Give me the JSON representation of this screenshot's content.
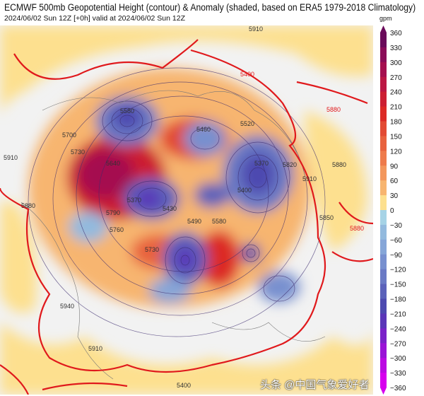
{
  "header": {
    "title": "ECMWF 500mb Geopotential Height (contour) & Anomaly (shaded, based on ERA5 1979-2018 Climatology)",
    "subtitle": "2024/06/02 Sun 12Z [+0h] valid at 2024/06/02 Sun 12Z"
  },
  "colorbar": {
    "unit": "gpm",
    "ticks": [
      "360",
      "330",
      "300",
      "270",
      "240",
      "210",
      "180",
      "150",
      "120",
      "90",
      "60",
      "30",
      "0",
      "−30",
      "−60",
      "−90",
      "−120",
      "−150",
      "−180",
      "−210",
      "−240",
      "−270",
      "−300",
      "−330",
      "−360"
    ],
    "colors": [
      "#6a0a5a",
      "#8a0c58",
      "#a50f4f",
      "#bb1744",
      "#cc1f33",
      "#dc2a26",
      "#e24a33",
      "#e8623e",
      "#ee7b4c",
      "#f3975d",
      "#f7b570",
      "#fde08f",
      "#f2f2f2",
      "#a6d3e6",
      "#93bade",
      "#86a6d8",
      "#7890cf",
      "#6a7ac5",
      "#5b62ba",
      "#4d4ab0",
      "#5a36b8",
      "#7a22c8",
      "#9a14d6",
      "#bb0ae2",
      "#d700ee"
    ]
  },
  "map": {
    "contour_labels": [
      "5910",
      "5880",
      "5910",
      "5580",
      "5700",
      "5730",
      "5640",
      "5460",
      "5370",
      "5430",
      "5490",
      "5580",
      "5520",
      "5370",
      "5400",
      "5850",
      "5910",
      "5820",
      "5790",
      "5760",
      "5730",
      "5940",
      "5910",
      "5880",
      "5400"
    ],
    "red_contour_labels": [
      "5880",
      "5880",
      "5400"
    ]
  },
  "watermark": "头条 @中国气象爱好者"
}
